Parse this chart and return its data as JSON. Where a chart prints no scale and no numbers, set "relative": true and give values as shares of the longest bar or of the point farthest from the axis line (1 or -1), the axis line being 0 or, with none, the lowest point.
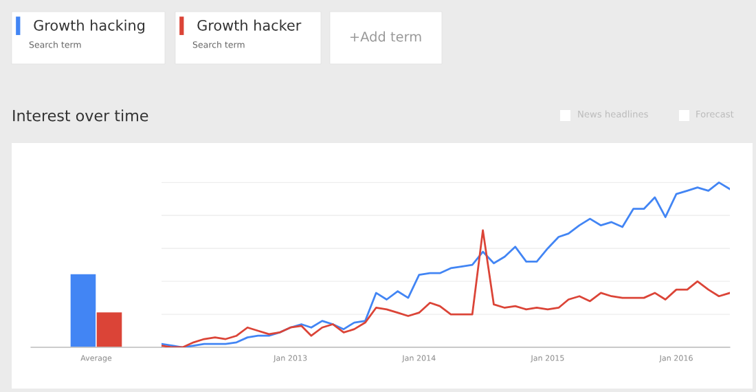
{
  "chart_data": [
    {
      "type": "bar",
      "relative": true,
      "categories": [
        "Average"
      ],
      "series": [
        {
          "color": "#4285f4",
          "values": [
            1
          ]
        },
        {
          "color": "#db4437",
          "values": [
            0.48
          ]
        }
      ]
    },
    {
      "type": "line",
      "title": "Interest over time",
      "relative": true,
      "grid": "y",
      "legend": "top left",
      "marker": "none",
      "line_style": "solid",
      "x": [
        "2012-01",
        "2012-02",
        "2012-03",
        "2012-04",
        "2012-05",
        "2012-06",
        "2012-07",
        "2012-08",
        "2012-09",
        "2012-10",
        "2012-11",
        "2012-12",
        "2013-01",
        "2013-02",
        "2013-03",
        "2013-04",
        "2013-05",
        "2013-06",
        "2013-07",
        "2013-08",
        "2013-09",
        "2013-10",
        "2013-11",
        "2013-12",
        "2014-01",
        "2014-02",
        "2014-03",
        "2014-04",
        "2014-05",
        "2014-06",
        "2014-07",
        "2014-08",
        "2014-09",
        "2014-10",
        "2014-11",
        "2014-12",
        "2015-01",
        "2015-02",
        "2015-03",
        "2015-04",
        "2015-05",
        "2015-06",
        "2015-07",
        "2015-08",
        "2015-09",
        "2015-10",
        "2015-11",
        "2015-12",
        "2016-01",
        "2016-02",
        "2016-03",
        "2016-04",
        "2016-05",
        "2016-06"
      ],
      "xlim": [
        "2012-01",
        "2016-06"
      ],
      "xticks": [
        {
          "value": "2013-01",
          "label": "Jan 2013"
        },
        {
          "value": "2014-01",
          "label": "Jan 2014"
        },
        {
          "value": "2015-01",
          "label": "Jan 2015"
        },
        {
          "value": "2016-01",
          "label": "Jan 2016"
        }
      ],
      "series": [
        {
          "name": "Growth hacking",
          "color": "#4285f4",
          "values": [
            0.02,
            0.01,
            0.0,
            0.01,
            0.02,
            0.02,
            0.02,
            0.03,
            0.06,
            0.07,
            0.07,
            0.09,
            0.12,
            0.14,
            0.12,
            0.16,
            0.14,
            0.11,
            0.15,
            0.16,
            0.33,
            0.29,
            0.34,
            0.3,
            0.44,
            0.45,
            0.45,
            0.48,
            0.49,
            0.5,
            0.58,
            0.51,
            0.55,
            0.61,
            0.52,
            0.52,
            0.6,
            0.67,
            0.69,
            0.74,
            0.78,
            0.74,
            0.76,
            0.73,
            0.84,
            0.84,
            0.91,
            0.79,
            0.93,
            0.95,
            0.97,
            0.95,
            1.0,
            0.96
          ]
        },
        {
          "name": "Growth hacker",
          "color": "#db4437",
          "values": [
            0.01,
            0.0,
            0.0,
            0.03,
            0.05,
            0.06,
            0.05,
            0.07,
            0.12,
            0.1,
            0.08,
            0.09,
            0.12,
            0.13,
            0.07,
            0.12,
            0.14,
            0.09,
            0.11,
            0.15,
            0.24,
            0.23,
            0.21,
            0.19,
            0.21,
            0.27,
            0.25,
            0.2,
            0.2,
            0.2,
            0.71,
            0.26,
            0.24,
            0.25,
            0.23,
            0.24,
            0.23,
            0.24,
            0.29,
            0.31,
            0.28,
            0.33,
            0.31,
            0.3,
            0.3,
            0.3,
            0.33,
            0.29,
            0.35,
            0.35,
            0.4,
            0.35,
            0.31,
            0.33
          ]
        }
      ],
      "annotations": [
        "Search term",
        "Search term",
        "+Add term",
        "News headlines",
        "Forecast"
      ]
    }
  ]
}
